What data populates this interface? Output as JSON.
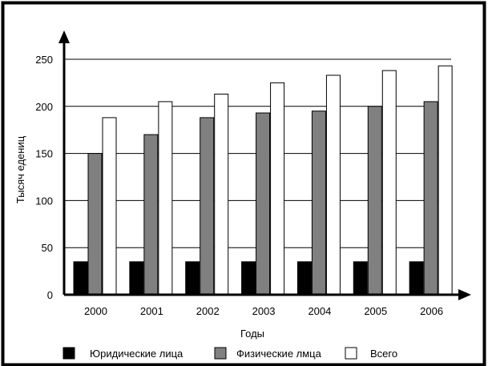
{
  "chart_data": {
    "type": "bar",
    "title": "",
    "xlabel": "Годы",
    "ylabel": "Тысяч едениц",
    "categories": [
      "2000",
      "2001",
      "2002",
      "2003",
      "2004",
      "2005",
      "2006"
    ],
    "series": [
      {
        "name": "Юридические лица",
        "values": [
          35,
          35,
          35,
          35,
          35,
          35,
          35
        ],
        "color": "#000000"
      },
      {
        "name": "Физические лмца",
        "values": [
          150,
          170,
          188,
          193,
          195,
          200,
          205
        ],
        "color": "#808080"
      },
      {
        "name": "Всего",
        "values": [
          188,
          205,
          213,
          225,
          233,
          238,
          243
        ],
        "color": "#ffffff"
      }
    ],
    "ylim": [
      0,
      250
    ],
    "yticks": [
      0,
      50,
      100,
      150,
      200,
      250
    ],
    "grid": true,
    "legend_position": "bottom"
  }
}
